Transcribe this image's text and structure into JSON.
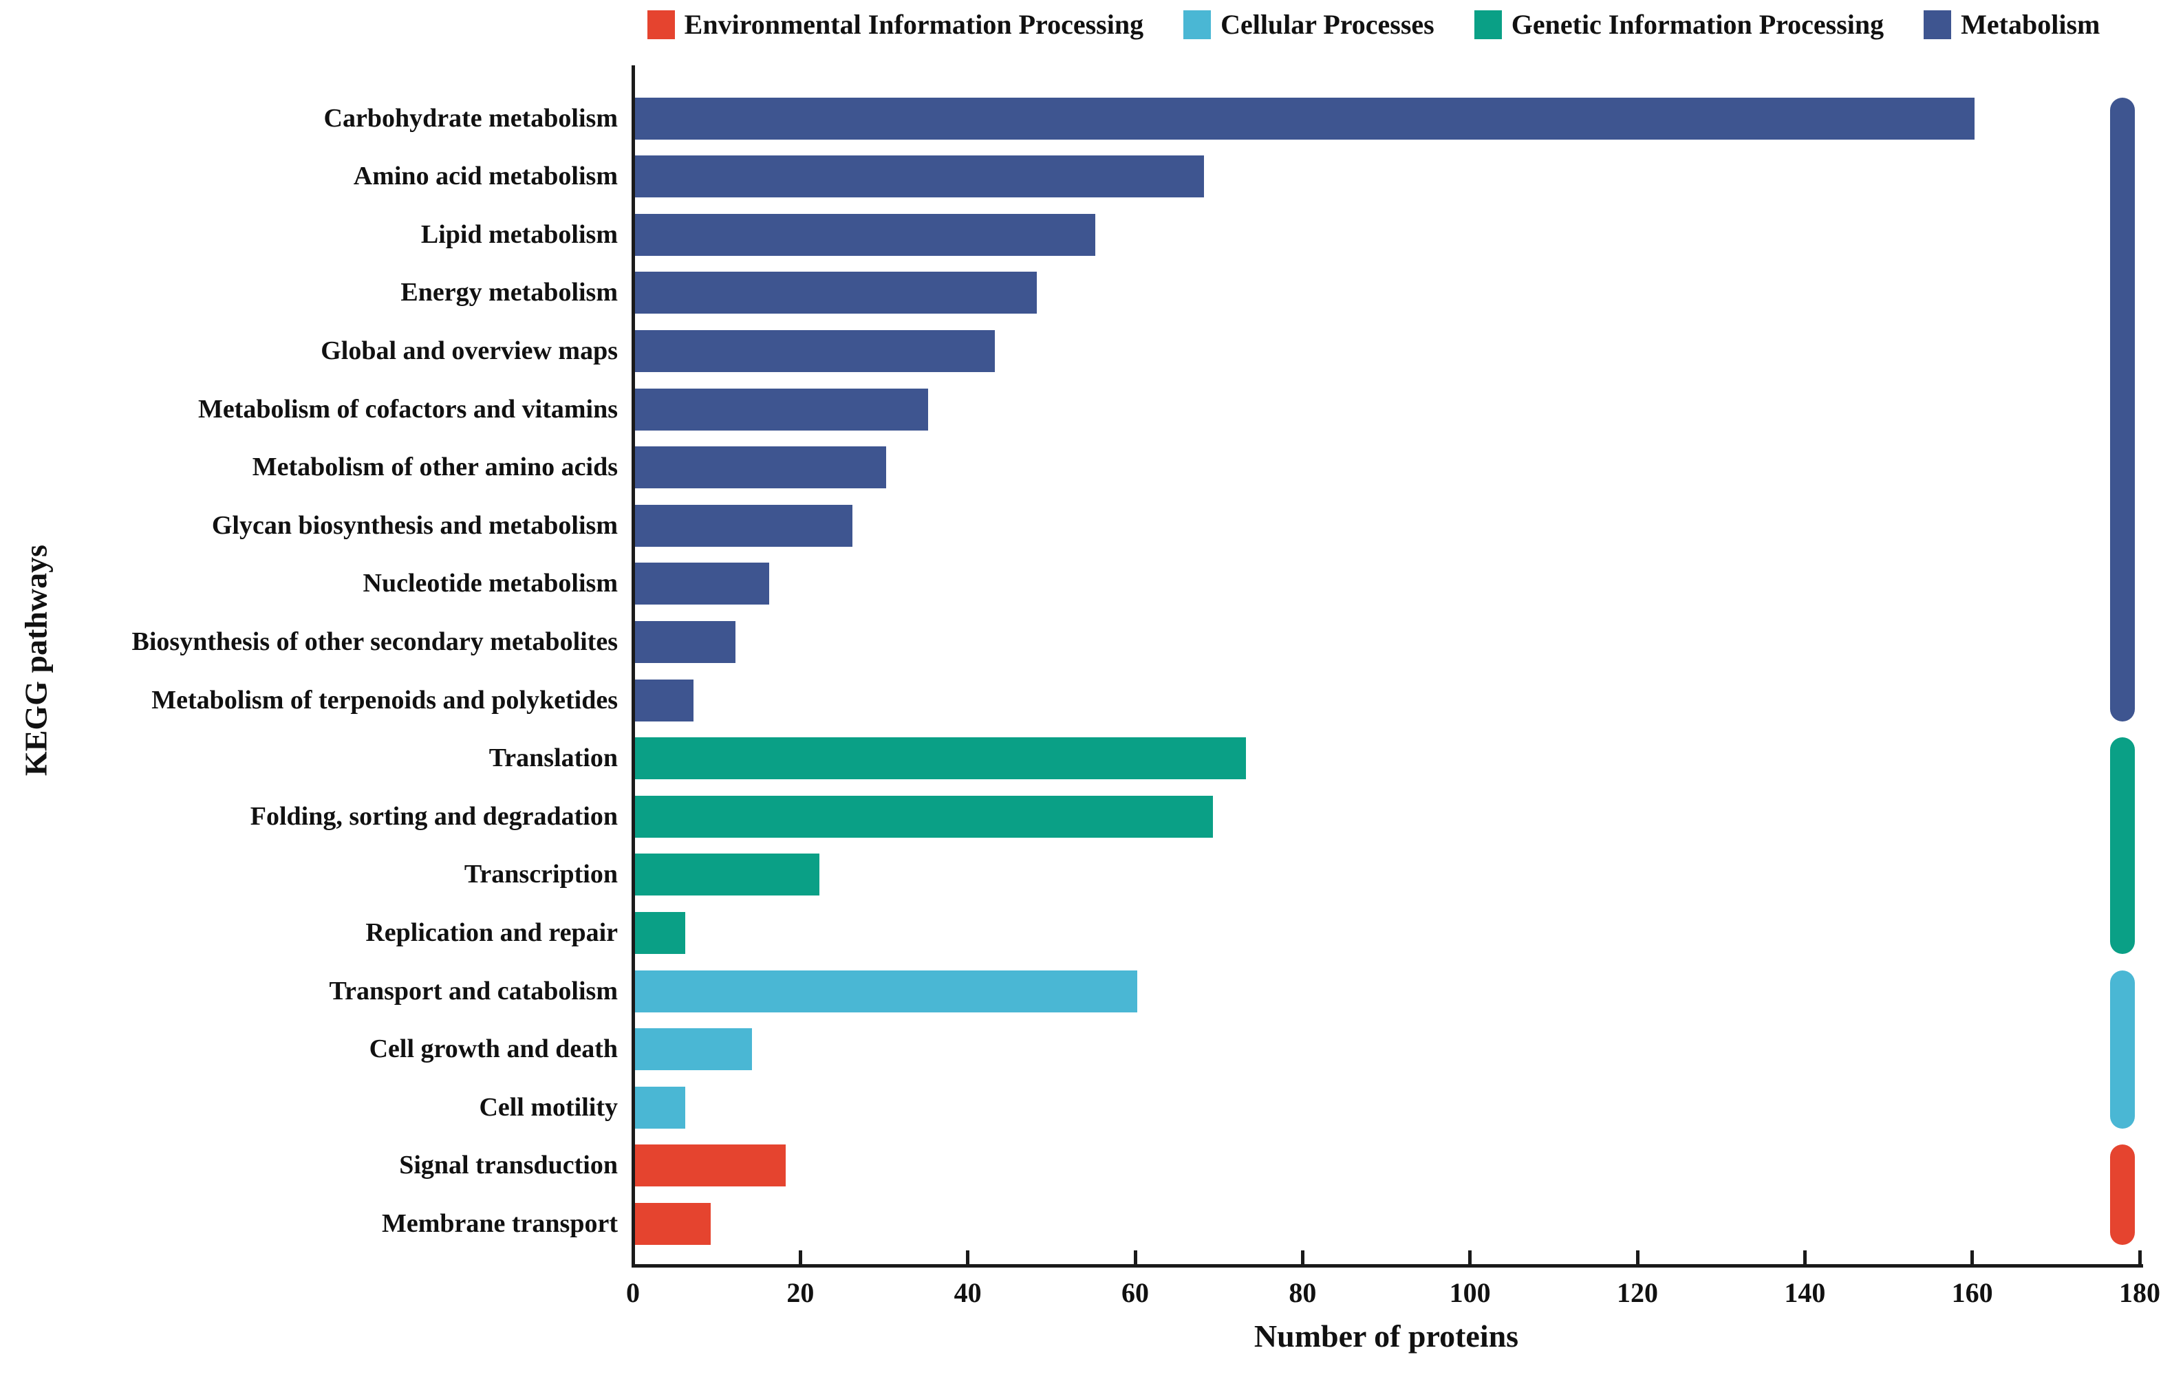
{
  "chart_data": {
    "type": "bar",
    "orientation": "horizontal",
    "title": "",
    "xlabel": "Number of proteins",
    "ylabel": "KEGG pathways",
    "xlim": [
      0,
      180
    ],
    "xticks": [
      0,
      20,
      40,
      60,
      80,
      100,
      120,
      140,
      160,
      180
    ],
    "grid": false,
    "legend_position": "top",
    "legend": [
      {
        "label": "Environmental Information Processing",
        "color": "#E5442F"
      },
      {
        "label": "Cellular Processes",
        "color": "#4AB7D4"
      },
      {
        "label": "Genetic Information Processing",
        "color": "#0AA086"
      },
      {
        "label": "Metabolism",
        "color": "#3E5590"
      }
    ],
    "group_colors": {
      "Environmental Information Processing": "#E5442F",
      "Cellular Processes": "#4AB7D4",
      "Genetic Information Processing": "#0AA086",
      "Metabolism": "#3E5590"
    },
    "rows": [
      {
        "pathway": "Carbohydrate metabolism",
        "value": 160,
        "group": "Metabolism"
      },
      {
        "pathway": "Amino acid metabolism",
        "value": 68,
        "group": "Metabolism"
      },
      {
        "pathway": "Lipid metabolism",
        "value": 55,
        "group": "Metabolism"
      },
      {
        "pathway": "Energy metabolism",
        "value": 48,
        "group": "Metabolism"
      },
      {
        "pathway": "Global and overview maps",
        "value": 43,
        "group": "Metabolism"
      },
      {
        "pathway": "Metabolism of cofactors and vitamins",
        "value": 35,
        "group": "Metabolism"
      },
      {
        "pathway": "Metabolism of other amino acids",
        "value": 30,
        "group": "Metabolism"
      },
      {
        "pathway": "Glycan biosynthesis and metabolism",
        "value": 26,
        "group": "Metabolism"
      },
      {
        "pathway": "Nucleotide metabolism",
        "value": 16,
        "group": "Metabolism"
      },
      {
        "pathway": "Biosynthesis of other secondary metabolites",
        "value": 12,
        "group": "Metabolism"
      },
      {
        "pathway": "Metabolism of terpenoids and polyketides",
        "value": 7,
        "group": "Metabolism"
      },
      {
        "pathway": "Translation",
        "value": 73,
        "group": "Genetic Information Processing"
      },
      {
        "pathway": "Folding, sorting and degradation",
        "value": 69,
        "group": "Genetic Information Processing"
      },
      {
        "pathway": "Transcription",
        "value": 22,
        "group": "Genetic Information Processing"
      },
      {
        "pathway": "Replication and repair",
        "value": 6,
        "group": "Genetic Information Processing"
      },
      {
        "pathway": "Transport and catabolism",
        "value": 60,
        "group": "Cellular Processes"
      },
      {
        "pathway": "Cell growth and death",
        "value": 14,
        "group": "Cellular Processes"
      },
      {
        "pathway": "Cell motility",
        "value": 6,
        "group": "Cellular Processes"
      },
      {
        "pathway": "Signal transduction",
        "value": 18,
        "group": "Environmental Information Processing"
      },
      {
        "pathway": "Membrane transport",
        "value": 9,
        "group": "Environmental Information Processing"
      }
    ]
  }
}
